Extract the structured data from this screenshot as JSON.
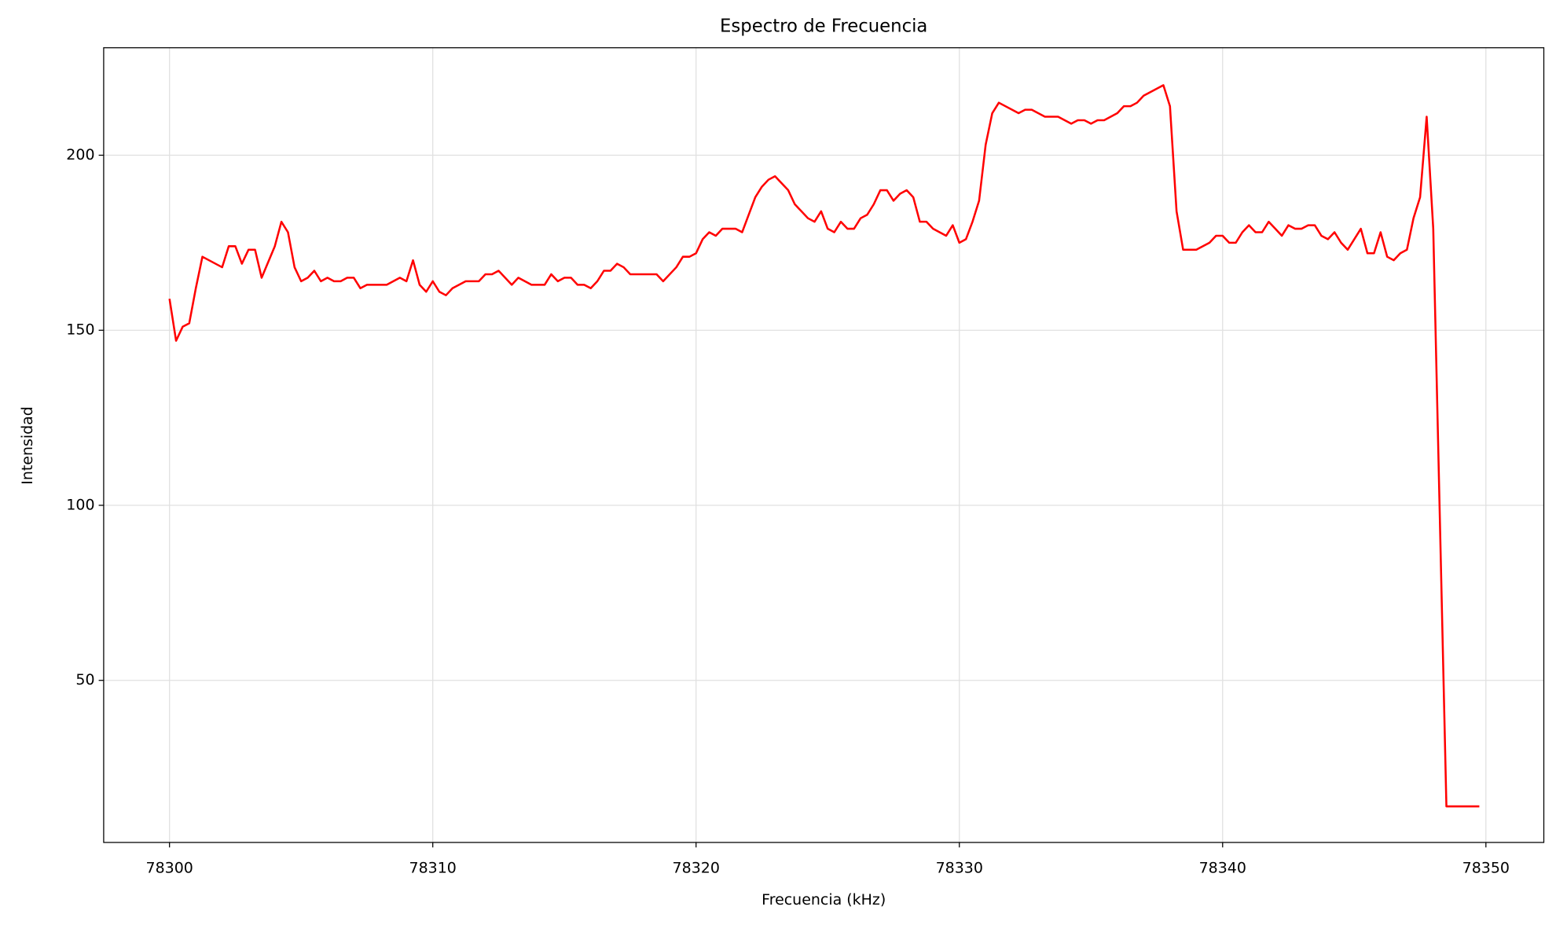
{
  "chart_data": {
    "type": "line",
    "title": "Espectro de Frecuencia",
    "x_label": "Frecuencia (kHz)",
    "y_label": "Intensidad",
    "xlim": [
      78297.5,
      78352.2
    ],
    "ylim": [
      3.7,
      230.7
    ],
    "xticks": [
      78300,
      78310,
      78320,
      78330,
      78340,
      78350
    ],
    "yticks": [
      50,
      100,
      150,
      200
    ],
    "grid": true,
    "x": [
      78300,
      78300.25,
      78300.5,
      78300.75,
      78301,
      78301.25,
      78302,
      78302.25,
      78302.5,
      78302.75,
      78303,
      78303.25,
      78303.5,
      78304,
      78304.25,
      78304.5,
      78304.75,
      78305,
      78305.25,
      78305.5,
      78305.75,
      78306,
      78306.25,
      78306.5,
      78306.75,
      78307,
      78307.25,
      78307.5,
      78308.25,
      78308.75,
      78309,
      78309.25,
      78309.5,
      78309.75,
      78310,
      78310.25,
      78310.5,
      78310.75,
      78311.25,
      78311.75,
      78312,
      78312.25,
      78312.5,
      78313,
      78313.25,
      78313.75,
      78314.25,
      78314.5,
      78314.75,
      78315,
      78315.25,
      78315.5,
      78315.75,
      78316,
      78316.25,
      78316.5,
      78316.75,
      78317,
      78317.25,
      78317.5,
      78318.5,
      78318.75,
      78319.25,
      78319.5,
      78319.75,
      78320,
      78320.25,
      78320.5,
      78320.75,
      78321,
      78321.5,
      78321.75,
      78322,
      78322.25,
      78322.5,
      78322.75,
      78323,
      78323.25,
      78323.5,
      78323.75,
      78324,
      78324.25,
      78324.5,
      78324.75,
      78325,
      78325.25,
      78325.5,
      78325.75,
      78326,
      78326.25,
      78326.5,
      78326.75,
      78327,
      78327.25,
      78327.5,
      78327.75,
      78328,
      78328.25,
      78328.5,
      78328.75,
      78329,
      78329.5,
      78329.75,
      78330,
      78330.25,
      78330.5,
      78330.75,
      78331,
      78331.25,
      78331.5,
      78332.25,
      78332.5,
      78332.75,
      78333.25,
      78333.75,
      78334.25,
      78334.5,
      78334.75,
      78335,
      78335.25,
      78335.5,
      78336,
      78336.25,
      78336.5,
      78336.75,
      78337,
      78337.75,
      78338,
      78338.25,
      78338.5,
      78339,
      78339.5,
      78339.75,
      78340,
      78340.25,
      78340.5,
      78340.75,
      78341,
      78341.25,
      78341.5,
      78341.75,
      78342,
      78342.25,
      78342.5,
      78342.75,
      78343,
      78343.25,
      78343.5,
      78343.75,
      78344,
      78344.25,
      78344.5,
      78344.75,
      78345,
      78345.25,
      78345.5,
      78345.75,
      78346,
      78346.25,
      78346.5,
      78346.75,
      78347,
      78347.25,
      78347.5,
      78347.75,
      78348,
      78348.5,
      78349.75
    ],
    "series": [
      {
        "color": "#ff0000",
        "values": [
          159,
          147,
          151,
          152,
          162,
          171,
          168,
          174,
          174,
          169,
          173,
          173,
          165,
          174,
          181,
          178,
          168,
          164,
          165,
          167,
          164,
          165,
          164,
          164,
          165,
          165,
          162,
          163,
          163,
          165,
          164,
          170,
          163,
          161,
          164,
          161,
          160,
          162,
          164,
          164,
          166,
          166,
          167,
          163,
          165,
          163,
          163,
          166,
          164,
          165,
          165,
          163,
          163,
          162,
          164,
          167,
          167,
          169,
          168,
          166,
          166,
          164,
          168,
          171,
          171,
          172,
          176,
          178,
          177,
          179,
          179,
          178,
          183,
          188,
          191,
          193,
          194,
          192,
          190,
          186,
          184,
          182,
          181,
          184,
          179,
          178,
          181,
          179,
          179,
          182,
          183,
          186,
          190,
          190,
          187,
          189,
          190,
          188,
          181,
          181,
          179,
          177,
          180,
          175,
          176,
          181,
          187,
          203,
          212,
          215,
          212,
          213,
          213,
          211,
          211,
          209,
          210,
          210,
          209,
          210,
          210,
          212,
          214,
          214,
          215,
          217,
          220,
          214,
          184,
          173,
          173,
          175,
          177,
          177,
          175,
          175,
          178,
          180,
          178,
          178,
          181,
          179,
          177,
          180,
          179,
          179,
          180,
          180,
          177,
          176,
          178,
          175,
          173,
          176,
          179,
          172,
          172,
          178,
          171,
          170,
          172,
          173,
          182,
          188,
          211,
          179,
          14,
          14
        ]
      }
    ]
  }
}
